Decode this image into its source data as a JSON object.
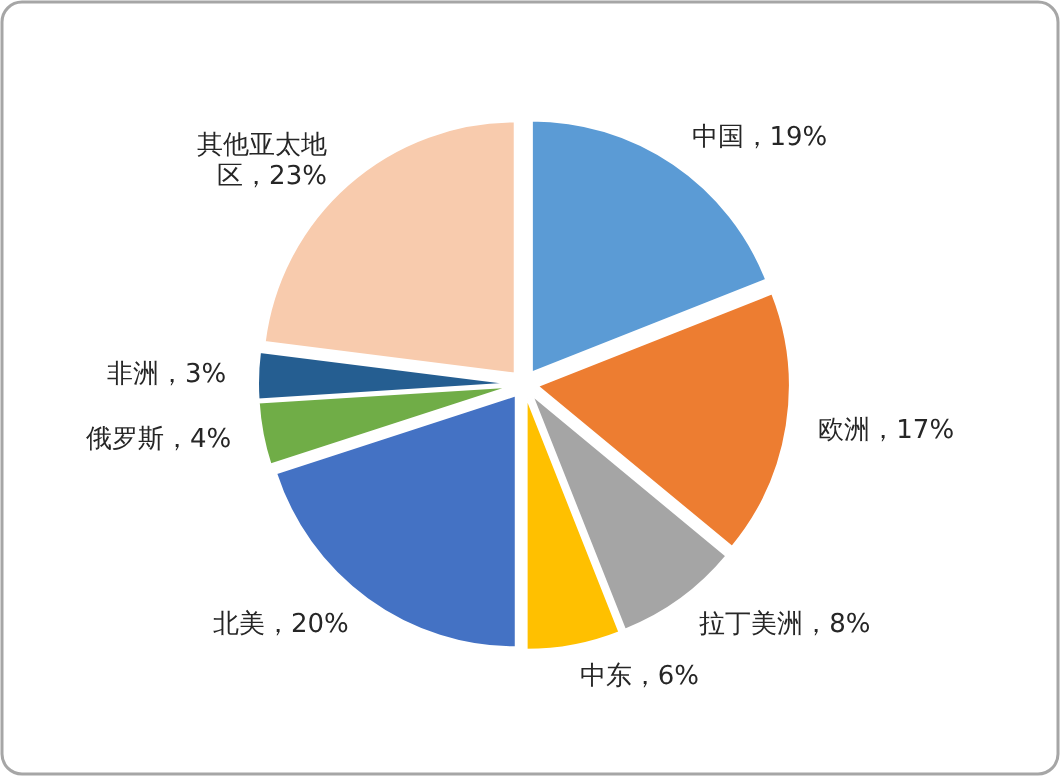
{
  "chart_data": {
    "type": "pie",
    "categories": [
      "中国",
      "欧洲",
      "拉丁美洲",
      "中东",
      "北美",
      "俄罗斯",
      "非洲",
      "其他亚太地区"
    ],
    "values": [
      19,
      17,
      8,
      6,
      20,
      4,
      3,
      23
    ],
    "value_labels": [
      "19%",
      "17%",
      "8%",
      "6%",
      "20%",
      "4%",
      "3%",
      "23%"
    ],
    "colors": [
      "#5b9bd5",
      "#ed7d31",
      "#a5a5a5",
      "#ffc000",
      "#4472c4",
      "#70ad47",
      "#255e91",
      "#f8cbad"
    ]
  }
}
